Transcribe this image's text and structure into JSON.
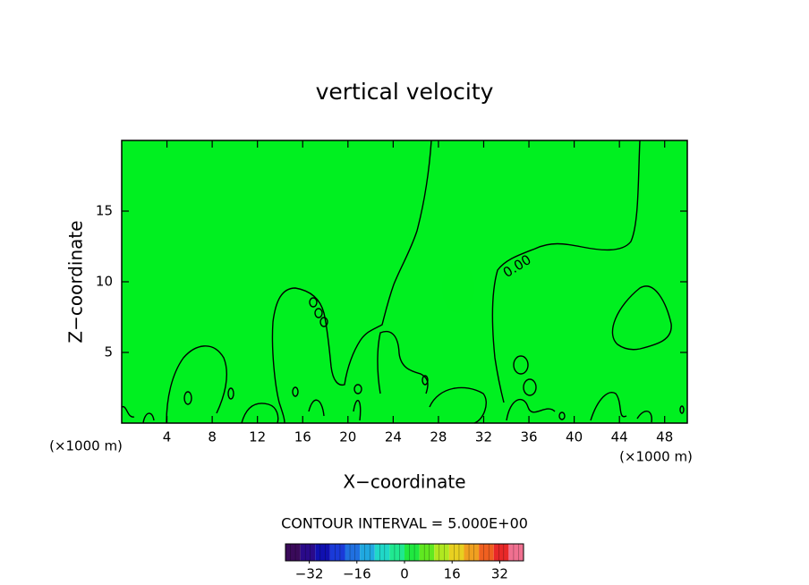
{
  "chart_data": {
    "type": "contour",
    "title": "vertical velocity",
    "xlabel": "X−coordinate",
    "ylabel": "Z−coordinate",
    "x_unit_label": "(×1000 m)",
    "y_unit_label": "(×1000 m)",
    "xlim": [
      0,
      50
    ],
    "ylim": [
      0,
      20
    ],
    "xticks": [
      4,
      8,
      12,
      16,
      20,
      24,
      28,
      32,
      36,
      40,
      44,
      48
    ],
    "yticks": [
      5,
      10,
      15
    ],
    "field_color": "#00f020",
    "contour_label": "0.00",
    "contour_interval_text": "CONTOUR INTERVAL = 5.000E+00",
    "colorbar": {
      "lim": [
        -40,
        40
      ],
      "ticks": [
        {
          "value": -32,
          "label": "−32"
        },
        {
          "value": -16,
          "label": "−16"
        },
        0,
        16,
        32
      ],
      "colors": [
        "#3a0a5a",
        "#2a0a8a",
        "#1010b0",
        "#1a3ad8",
        "#2070e0",
        "#20a8e0",
        "#20d8c8",
        "#20e890",
        "#20e840",
        "#60e820",
        "#b0e820",
        "#e8d020",
        "#f0a020",
        "#f06020",
        "#e82828",
        "#f07090"
      ]
    }
  }
}
